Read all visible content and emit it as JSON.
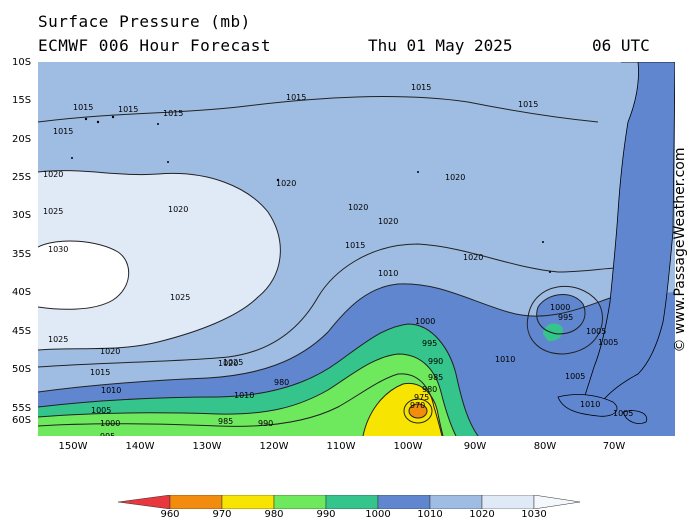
{
  "header": {
    "title": "Surface Pressure (mb)",
    "subtitle": "ECMWF 006 Hour Forecast",
    "date": "Thu 01 May 2025",
    "time": "06 UTC"
  },
  "map": {
    "lat_labels": [
      "10S",
      "15S",
      "20S",
      "25S",
      "30S",
      "35S",
      "40S",
      "45S",
      "50S",
      "55S",
      "60S"
    ],
    "lon_labels": [
      "150W",
      "140W",
      "130W",
      "120W",
      "110W",
      "100W",
      "90W",
      "80W",
      "70W"
    ],
    "isobar_labels": [
      "1015",
      "1015",
      "1015",
      "1015",
      "1015",
      "1015",
      "1015",
      "1020",
      "1020",
      "1020",
      "1020",
      "1020",
      "1020",
      "1020",
      "1025",
      "1025",
      "1030",
      "1025",
      "1015",
      "1010",
      "1025",
      "1020",
      "1020",
      "1015",
      "1010",
      "1010",
      "1005",
      "1000",
      "995",
      "990",
      "985",
      "980",
      "975",
      "970",
      "1000",
      "995",
      "990",
      "985",
      "980",
      "1010",
      "1005",
      "1000",
      "995",
      "1005",
      "1005",
      "1010",
      "1005"
    ],
    "low_center_color": "#f28c0f"
  },
  "colorbar": {
    "labels": [
      "960",
      "970",
      "980",
      "990",
      "1000",
      "1010",
      "1020",
      "1030"
    ],
    "colors": [
      "#e8383d",
      "#f28c0f",
      "#f7e400",
      "#6ee85c",
      "#34c48c",
      "#5f86cf",
      "#9fbde3",
      "#e0e9f6"
    ]
  },
  "watermark": "© www.PassageWeather.com"
}
